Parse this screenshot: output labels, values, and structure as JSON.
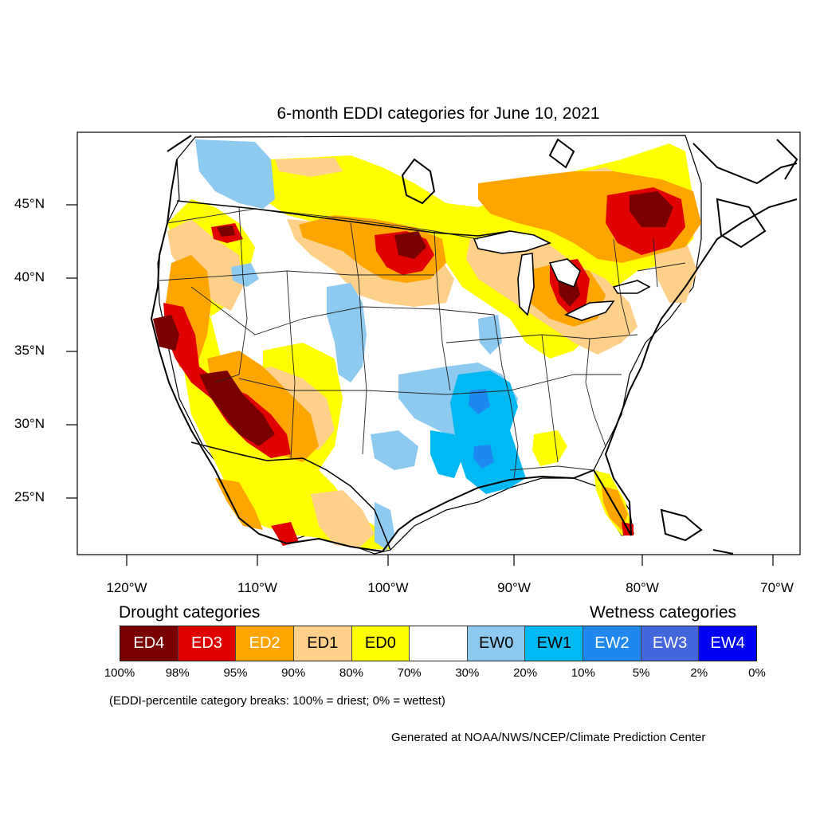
{
  "title": "6-month EDDI categories for June 10, 2021",
  "map": {
    "latitude_labels": [
      "45°N",
      "40°N",
      "35°N",
      "30°N",
      "25°N"
    ],
    "longitude_labels": [
      "120°W",
      "110°W",
      "100°W",
      "90°W",
      "80°W",
      "70°W"
    ],
    "background_color": "#ffffff",
    "outline_color": "#000000"
  },
  "legend": {
    "drought_heading": "Drought categories",
    "wetness_heading": "Wetness categories",
    "categories": [
      {
        "label": "ED4",
        "color": "#7a0000",
        "text_color": "#ffffff"
      },
      {
        "label": "ED3",
        "color": "#e00000",
        "text_color": "#ffffff"
      },
      {
        "label": "ED2",
        "color": "#ffa500",
        "text_color": "#ffffff"
      },
      {
        "label": "ED1",
        "color": "#ffd08a",
        "text_color": "#000000"
      },
      {
        "label": "ED0",
        "color": "#ffff00",
        "text_color": "#000000"
      },
      {
        "label": "",
        "color": "#ffffff",
        "text_color": "#000000"
      },
      {
        "label": "EW0",
        "color": "#8ecaf0",
        "text_color": "#000000"
      },
      {
        "label": "EW1",
        "color": "#00b8f2",
        "text_color": "#000000"
      },
      {
        "label": "EW2",
        "color": "#1e88f0",
        "text_color": "#ffffff"
      },
      {
        "label": "EW3",
        "color": "#4466dd",
        "text_color": "#ffffff"
      },
      {
        "label": "EW4",
        "color": "#0000f5",
        "text_color": "#ffffff"
      }
    ],
    "breaks": [
      "100%",
      "98%",
      "95%",
      "90%",
      "80%",
      "70%",
      "30%",
      "20%",
      "10%",
      "5%",
      "2%",
      "0%"
    ],
    "note": "(EDDI-percentile category breaks: 100% = driest; 0% = wettest)"
  },
  "credit": "Generated at NOAA/NWS/NCEP/Climate Prediction Center"
}
